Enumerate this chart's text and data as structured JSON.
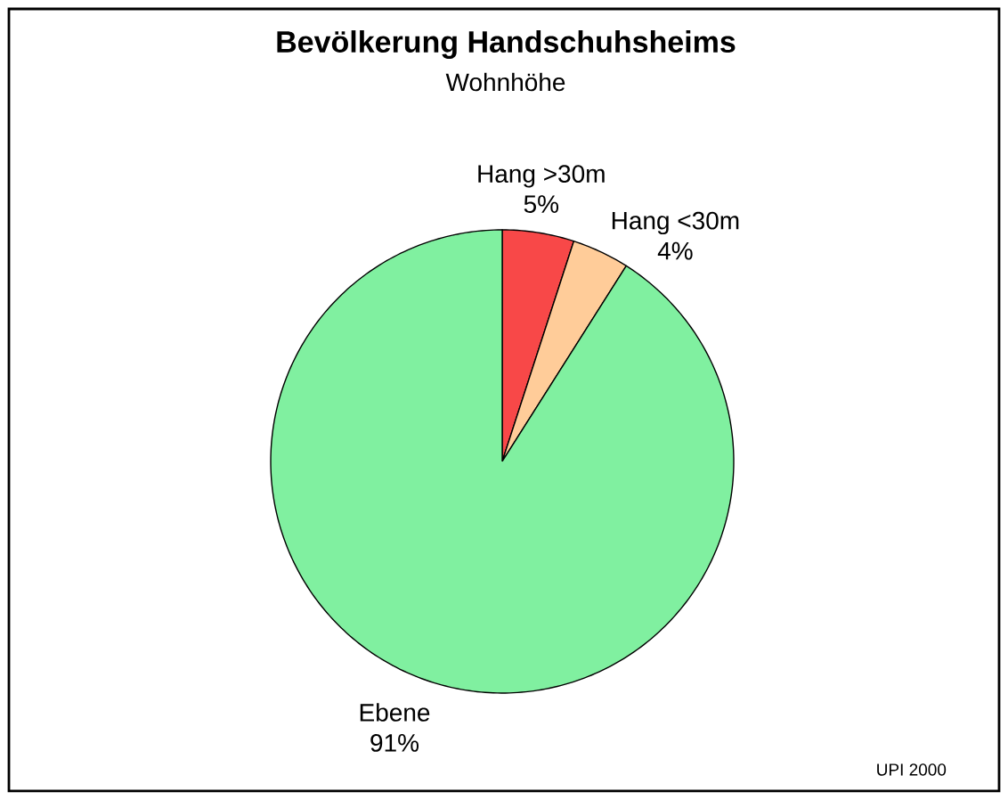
{
  "chart_data": {
    "type": "pie",
    "title": "Bevölkerung Handschuhsheims",
    "subtitle": "Wohnhöhe",
    "categories": [
      "Hang >30m",
      "Hang <30m",
      "Ebene"
    ],
    "values": [
      5,
      4,
      91
    ],
    "value_labels": [
      "5%",
      "4%",
      "91%"
    ],
    "colors": [
      "#f84848",
      "#ffcc99",
      "#80f0a0"
    ],
    "annotations": [
      "UPI 2000"
    ]
  }
}
